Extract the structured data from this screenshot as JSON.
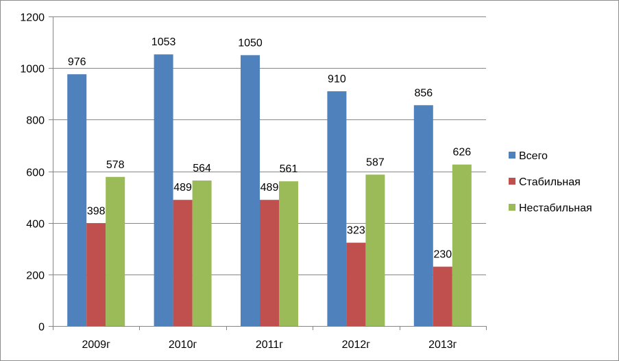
{
  "chart_data": {
    "type": "bar",
    "title": "",
    "xlabel": "",
    "ylabel": "",
    "categories": [
      "2009г",
      "2010г",
      "2011г",
      "2012г",
      "2013г"
    ],
    "series": [
      {
        "name": "Всего",
        "color": "#4F81BD",
        "values": [
          976,
          1053,
          1050,
          910,
          856
        ]
      },
      {
        "name": "Стабильная",
        "color": "#C0504D",
        "values": [
          398,
          489,
          489,
          323,
          230
        ]
      },
      {
        "name": "Нестабильная",
        "color": "#9BBB59",
        "values": [
          578,
          564,
          561,
          587,
          626
        ]
      }
    ],
    "ylim": [
      0,
      1200
    ],
    "yticks": [
      0,
      200,
      400,
      600,
      800,
      1000,
      1200
    ],
    "grid": true,
    "legend": "right"
  }
}
